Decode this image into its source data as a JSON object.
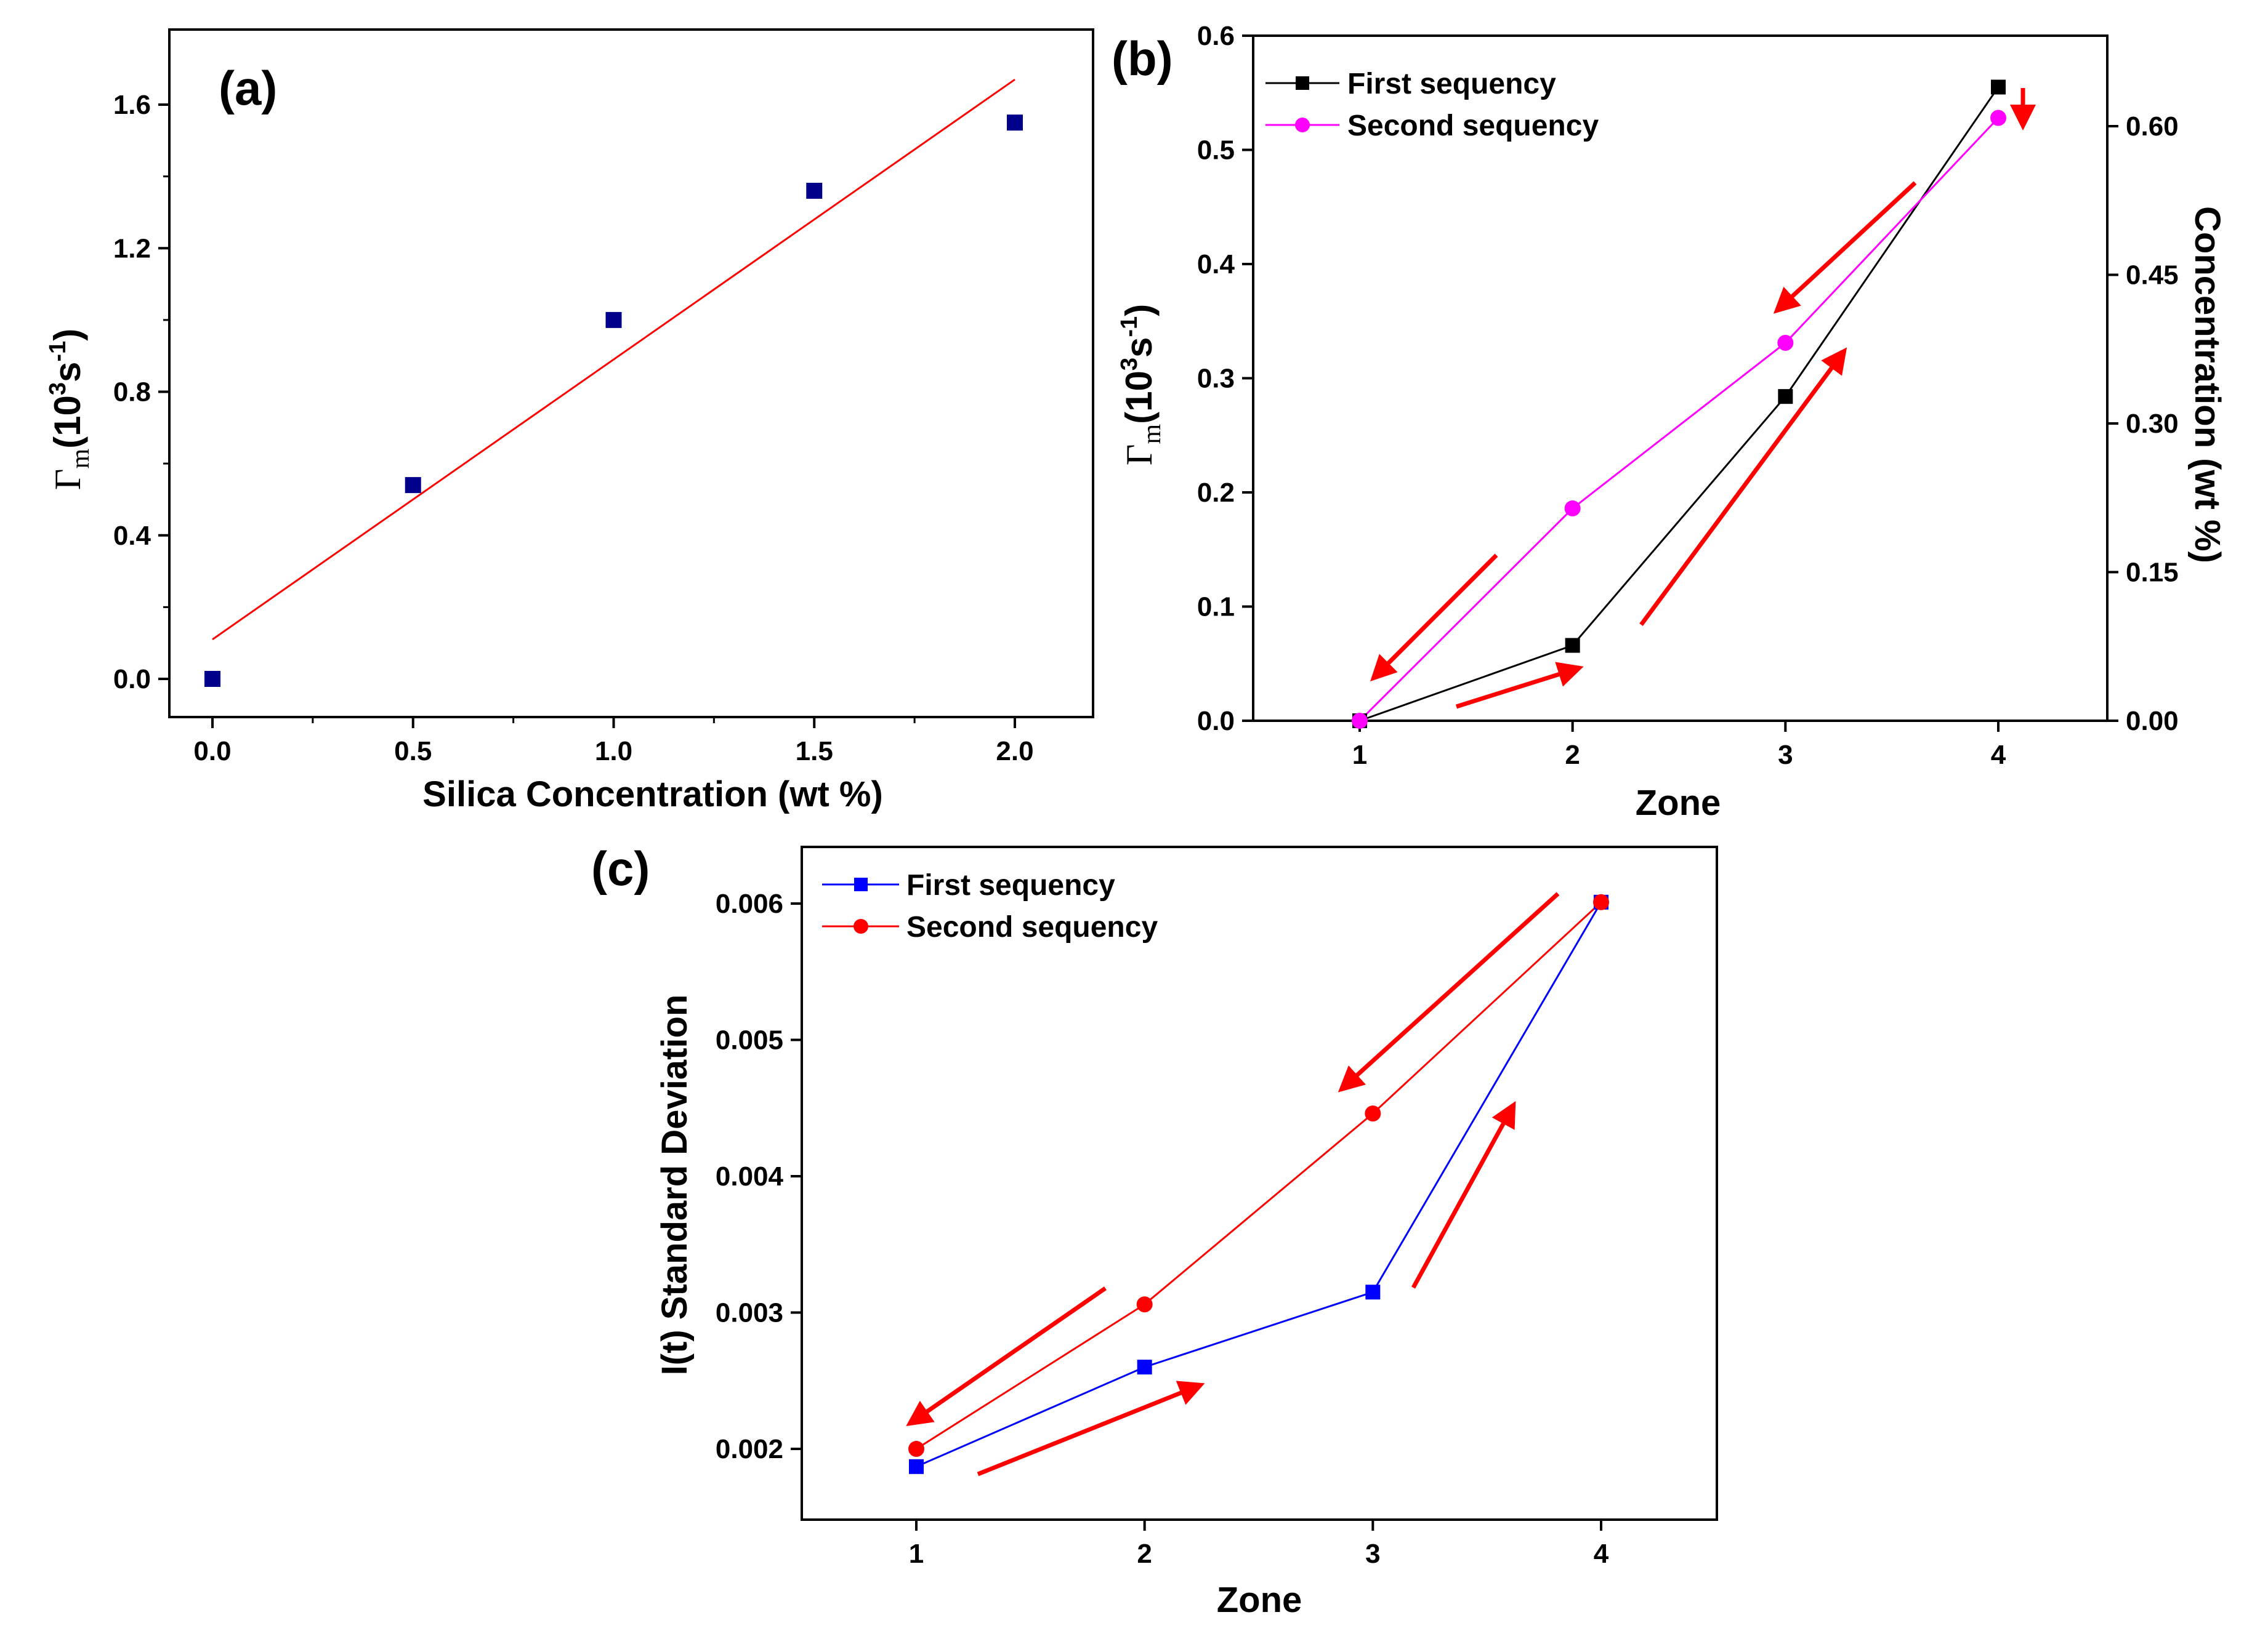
{
  "colors": {
    "a_marker": "#00008B",
    "a_fit": "#FF0000",
    "b_first": "#000000",
    "b_second": "#FF00FF",
    "c_first": "#0000FF",
    "c_second": "#FF0000",
    "arrows": "#FF0000"
  },
  "chart_data": [
    {
      "id": "a",
      "panel_label": "(a)",
      "type": "scatter",
      "xlabel": "Silica Concentration (wt %)",
      "ylabel": {
        "symbol": "Γ",
        "sub": "m",
        "unit": "(10",
        "sup1": "3",
        "mid": "s",
        "sup2": "-1",
        "close": ")"
      },
      "xlim": [
        -0.1,
        2.2
      ],
      "ylim": [
        -0.1,
        1.8
      ],
      "xticks": [
        "0.0",
        "0.5",
        "1.0",
        "1.5",
        "2.0"
      ],
      "yticks": [
        "0.0",
        "0.4",
        "0.8",
        "1.2",
        "1.6"
      ],
      "points": {
        "x": [
          0.0,
          0.5,
          1.0,
          1.5,
          2.0
        ],
        "y": [
          0.0,
          0.54,
          1.0,
          1.36,
          1.55
        ]
      },
      "fit_line": {
        "x": [
          0.0,
          2.0
        ],
        "y": [
          0.11,
          1.67
        ]
      }
    },
    {
      "id": "b",
      "panel_label": "(b)",
      "type": "line",
      "xlabel": "Zone",
      "ylabel": {
        "symbol": "Γ",
        "sub": "m",
        "unit": "(10",
        "sup1": "3",
        "mid": "s",
        "sup2": "-1",
        "close": ")"
      },
      "ylabel_right": "Concentration (wt %)",
      "xlim": [
        0.5,
        4.5
      ],
      "ylim": [
        0.0,
        0.6
      ],
      "ylim_right": [
        0.0,
        0.69
      ],
      "xticks": [
        "1",
        "2",
        "3",
        "4"
      ],
      "yticks": [
        "0.0",
        "0.1",
        "0.2",
        "0.3",
        "0.4",
        "0.5",
        "0.6"
      ],
      "yticks_right": [
        "0.00",
        "0.15",
        "0.30",
        "0.45",
        "0.60"
      ],
      "x": [
        1,
        2,
        3,
        4
      ],
      "series": [
        {
          "name": "First sequency",
          "marker": "square",
          "values": [
            0.0,
            0.066,
            0.284,
            0.555
          ]
        },
        {
          "name": "Second sequency",
          "marker": "circle",
          "values": [
            0.0,
            0.186,
            0.331,
            0.528
          ]
        }
      ]
    },
    {
      "id": "c",
      "panel_label": "(c)",
      "type": "line",
      "xlabel": "Zone",
      "ylabel": "I(t) Standard Deviation",
      "xlim": [
        0.5,
        4.5
      ],
      "ylim": [
        0.00163,
        0.0065
      ],
      "xticks": [
        "1",
        "2",
        "3",
        "4"
      ],
      "yticks": [
        "0.002",
        "0.003",
        "0.004",
        "0.005",
        "0.006"
      ],
      "x": [
        1,
        2,
        3,
        4
      ],
      "series": [
        {
          "name": "First sequency",
          "marker": "square",
          "values": [
            0.00187,
            0.0026,
            0.00315,
            0.00601
          ]
        },
        {
          "name": "Second sequency",
          "marker": "circle",
          "values": [
            0.002,
            0.00306,
            0.00446,
            0.00601
          ]
        }
      ]
    }
  ]
}
